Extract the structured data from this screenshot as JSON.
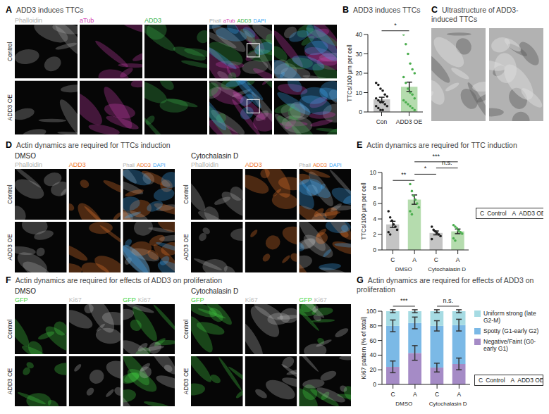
{
  "figure": {
    "panels": [
      {
        "letter": "A",
        "title": "ADD3 induces TTCs",
        "rows": [
          "Control",
          "ADD3 OE"
        ],
        "zoom_column": true,
        "blocks": [
          {
            "columns": [
              {
                "parts": [
                  {
                    "text": "Phalloidin",
                    "color": "#b0b0b0"
                  }
                ]
              },
              {
                "parts": [
                  {
                    "text": "aTub",
                    "color": "#d23fb4"
                  }
                ]
              },
              {
                "parts": [
                  {
                    "text": "ADD3",
                    "color": "#3cb44b"
                  }
                ]
              },
              {
                "parts": [
                  {
                    "text": "Phall",
                    "color": "#b0b0b0"
                  },
                  {
                    "text": "aTub",
                    "color": "#d23fb4"
                  },
                  {
                    "text": "ADD3",
                    "color": "#3cb44b"
                  },
                  {
                    "text": "DAPI",
                    "color": "#3fa9f5"
                  }
                ]
              }
            ]
          }
        ]
      },
      {
        "letter": "C",
        "title": "Ultrastructure of ADD3-induced TTCs"
      },
      {
        "letter": "D",
        "title": "Actin dynamics are required for TTCs induction",
        "rows": [
          "Control",
          "ADD3 OE"
        ],
        "blocks": [
          {
            "label": "DMSO",
            "columns": [
              {
                "parts": [
                  {
                    "text": "Phalloidin",
                    "color": "#b0b0b0"
                  }
                ]
              },
              {
                "parts": [
                  {
                    "text": "ADD3",
                    "color": "#f07a30"
                  }
                ]
              },
              {
                "parts": [
                  {
                    "text": "Phall",
                    "color": "#b0b0b0"
                  },
                  {
                    "text": "ADD3",
                    "color": "#f07a30"
                  },
                  {
                    "text": "DAPI",
                    "color": "#3fa9f5"
                  }
                ]
              }
            ]
          },
          {
            "label": "Cytochalasin D",
            "columns": [
              {
                "parts": [
                  {
                    "text": "Phalloidin",
                    "color": "#b0b0b0"
                  }
                ]
              },
              {
                "parts": [
                  {
                    "text": "ADD3",
                    "color": "#f07a30"
                  }
                ]
              },
              {
                "parts": [
                  {
                    "text": "Phall",
                    "color": "#b0b0b0"
                  },
                  {
                    "text": "ADD3",
                    "color": "#f07a30"
                  },
                  {
                    "text": "DAPI",
                    "color": "#3fa9f5"
                  }
                ]
              }
            ]
          }
        ]
      },
      {
        "letter": "F",
        "title": "Actin dynamics are required for effects of ADD3 on proliferation",
        "rows": [
          "Control",
          "ADD3 OE"
        ],
        "blocks": [
          {
            "label": "DMSO",
            "columns": [
              {
                "parts": [
                  {
                    "text": "GFP",
                    "color": "#45d645"
                  }
                ]
              },
              {
                "parts": [
                  {
                    "text": "Ki67",
                    "color": "#bdbdbd"
                  }
                ]
              },
              {
                "parts": [
                  {
                    "text": "GFP",
                    "color": "#45d645"
                  },
                  {
                    "text": "Ki67",
                    "color": "#bdbdbd"
                  }
                ]
              }
            ]
          },
          {
            "label": "Cytochalasin D",
            "columns": [
              {
                "parts": [
                  {
                    "text": "GFP",
                    "color": "#45d645"
                  }
                ]
              },
              {
                "parts": [
                  {
                    "text": "Ki67",
                    "color": "#bdbdbd"
                  }
                ]
              },
              {
                "parts": [
                  {
                    "text": "GFP",
                    "color": "#45d645"
                  },
                  {
                    "text": "Ki67",
                    "color": "#bdbdbd"
                  }
                ]
              }
            ]
          }
        ]
      }
    ]
  },
  "chart_data": [
    {
      "letter": "B",
      "title": "ADD3 induces TTCs",
      "type": "bar",
      "categories": [
        "Con",
        "ADD3 OE"
      ],
      "values": [
        6.5,
        13
      ],
      "errors": [
        1.1,
        2.4
      ],
      "colors": [
        "#c4c4c4",
        "#b5dcae"
      ],
      "points": [
        {
          "color": "#1a1a1a",
          "values": [
            15,
            14,
            12,
            11,
            9,
            8,
            7,
            6,
            5,
            5,
            4,
            3,
            3,
            2,
            1,
            1
          ]
        },
        {
          "color": "#4cae4f",
          "values": [
            40,
            35,
            30,
            25,
            22,
            20,
            18,
            15,
            12,
            10,
            9,
            7,
            6,
            5,
            4,
            3,
            2,
            1
          ]
        }
      ],
      "y_label": "TTCs/100 μm per cell",
      "ylim": [
        0,
        40
      ],
      "yticks": [
        0,
        10,
        20,
        30,
        40
      ],
      "significance": [
        {
          "from": 0,
          "to": 1,
          "label": "*"
        }
      ]
    },
    {
      "letter": "E",
      "title": "Actin dynamics are required for TTC induction",
      "type": "bar",
      "categories": [
        "C",
        "A",
        "C",
        "A"
      ],
      "groups": [
        "DMSO",
        "DMSO",
        "Cytochalasin D",
        "Cytochalasin D"
      ],
      "values": [
        3.3,
        6.5,
        2.2,
        2.4
      ],
      "errors": [
        0.4,
        0.6,
        0.25,
        0.3
      ],
      "colors": [
        "#c4c4c4",
        "#b5dcae",
        "#c4c4c4",
        "#b5dcae"
      ],
      "points": [
        {
          "color": "#1a1a1a",
          "values": [
            5,
            4.2,
            3.8,
            3.3,
            3,
            2.6,
            2.3,
            2
          ]
        },
        {
          "color": "#4cae4f",
          "values": [
            8.5,
            7.6,
            7,
            6.5,
            6,
            5.5,
            5,
            4.6
          ]
        },
        {
          "color": "#1a1a1a",
          "values": [
            3,
            2.6,
            2.4,
            2.2,
            2,
            1.8,
            1.4
          ]
        },
        {
          "color": "#4cae4f",
          "values": [
            3.2,
            3,
            2.8,
            2.5,
            2.3,
            2.1,
            1.5,
            1.2
          ]
        }
      ],
      "y_label": "TTCs/100 μm per cell",
      "ylim": [
        0,
        10
      ],
      "yticks": [
        0,
        2,
        4,
        6,
        8,
        10
      ],
      "significance": [
        {
          "from": 0,
          "to": 1,
          "label": "**"
        },
        {
          "from": 1,
          "to": 2,
          "label": "*"
        },
        {
          "from": 1,
          "to": 3,
          "label": "***"
        },
        {
          "from": 2,
          "to": 3,
          "label": "n.s."
        }
      ],
      "key": [
        {
          "abbr": "C",
          "label": "Control"
        },
        {
          "abbr": "A",
          "label": "ADD3 OE"
        }
      ]
    },
    {
      "letter": "G",
      "title": "Actin dynamics are required for effects of ADD3 on proliferation",
      "type": "bar",
      "stacked": true,
      "categories": [
        "C",
        "A",
        "C",
        "A"
      ],
      "groups": [
        "DMSO",
        "DMSO",
        "Cytochalasin D",
        "Cytochalasin D"
      ],
      "series": [
        {
          "name": "Negative/Faint (G0-early G1)",
          "color": "#a58bc6",
          "values": [
            24,
            43,
            23,
            28
          ],
          "errors": [
            8,
            10,
            6,
            8
          ]
        },
        {
          "name": "Spotty (G1-early G2)",
          "color": "#7bb9e6",
          "values": [
            56,
            41,
            57,
            53
          ],
          "errors": [
            8,
            8,
            7,
            8
          ]
        },
        {
          "name": "Uniform strong (late G2-M)",
          "color": "#a6dbe3",
          "values": [
            20,
            16,
            20,
            19
          ],
          "errors": [
            2,
            2,
            2,
            2
          ]
        }
      ],
      "y_label": "Ki67 pattern (% of total)",
      "ylim": [
        0,
        100
      ],
      "yticks": [
        0,
        20,
        40,
        60,
        80,
        100
      ],
      "legend": "right",
      "significance": [
        {
          "from": 0,
          "to": 1,
          "label": "***"
        },
        {
          "from": 2,
          "to": 3,
          "label": "n.s."
        }
      ],
      "key": [
        {
          "abbr": "C",
          "label": "Control"
        },
        {
          "abbr": "A",
          "label": "ADD3 OE"
        }
      ]
    }
  ]
}
